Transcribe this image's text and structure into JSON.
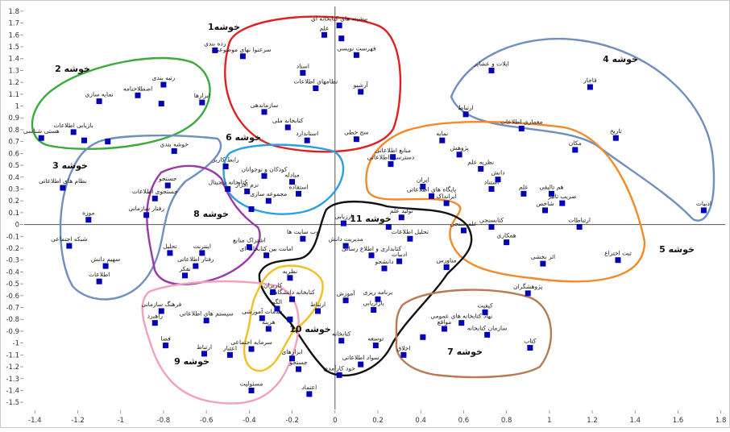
{
  "chart_data": {
    "type": "scatter",
    "xlim": [
      -1.45,
      1.82
    ],
    "ylim": [
      -1.56,
      1.84
    ],
    "x_ticks": [
      -1.4,
      -1.2,
      -1,
      -0.8,
      -0.6,
      -0.4,
      -0.2,
      0,
      0.2,
      0.4,
      0.6,
      0.8,
      1,
      1.2,
      1.4,
      1.6,
      1.8
    ],
    "y_ticks": [
      -1.5,
      -1.4,
      -1.3,
      -1.2,
      -1.1,
      -1,
      -0.9,
      -0.8,
      -0.7,
      -0.6,
      -0.5,
      -0.4,
      -0.3,
      -0.2,
      -0.1,
      0,
      0.1,
      0.2,
      0.3,
      0.4,
      0.5,
      0.6,
      0.7,
      0.8,
      0.9,
      1,
      1.1,
      1.2,
      1.3,
      1.4,
      1.5,
      1.6,
      1.7,
      1.8
    ],
    "grid": false,
    "points": [
      {
        "x": 0.02,
        "y": 1.68,
        "label": "پیشینه های کتابخانه ای"
      },
      {
        "x": -0.05,
        "y": 1.6,
        "label": "علم"
      },
      {
        "x": 0.03,
        "y": 1.57,
        "label": ""
      },
      {
        "x": 0.1,
        "y": 1.43,
        "label": "فهرست نویسی"
      },
      {
        "x": -0.56,
        "y": 1.47,
        "label": "رده بندی"
      },
      {
        "x": -0.43,
        "y": 1.42,
        "label": "سرعنوا نهای موضوعی"
      },
      {
        "x": -0.15,
        "y": 1.28,
        "label": "اسناد"
      },
      {
        "x": -0.09,
        "y": 1.15,
        "label": "نظامهای اطلاعات"
      },
      {
        "x": 0.12,
        "y": 1.12,
        "label": "آرشیو"
      },
      {
        "x": -0.62,
        "y": 1.03,
        "label": "ابزارها"
      },
      {
        "x": -0.33,
        "y": 0.95,
        "label": "سازماندهی"
      },
      {
        "x": -0.22,
        "y": 0.82,
        "label": "کتابخانه ملی"
      },
      {
        "x": -0.13,
        "y": 0.71,
        "label": "استاندارد"
      },
      {
        "x": 0.1,
        "y": 0.72,
        "label": "سح خطی"
      },
      {
        "x": -0.8,
        "y": 1.18,
        "label": "رتبه بندی"
      },
      {
        "x": -1.1,
        "y": 1.04,
        "label": "نمایه سازی"
      },
      {
        "x": -0.92,
        "y": 1.09,
        "label": "اصطلاحنامه"
      },
      {
        "x": -0.81,
        "y": 1.02,
        "label": ""
      },
      {
        "x": -1.37,
        "y": 0.73,
        "label": "هستی شناسی"
      },
      {
        "x": -1.22,
        "y": 0.78,
        "label": "بازیابی اطلاعات"
      },
      {
        "x": -1.17,
        "y": 0.71,
        "label": ""
      },
      {
        "x": -1.06,
        "y": 0.7,
        "label": ""
      },
      {
        "x": -0.75,
        "y": 0.62,
        "label": "خوشه بندی"
      },
      {
        "x": -1.27,
        "y": 0.31,
        "label": "نظام های اطلاعاتی"
      },
      {
        "x": -0.78,
        "y": 0.33,
        "label": "جستجو"
      },
      {
        "x": -0.84,
        "y": 0.22,
        "label": "جستجوی اطلاعات"
      },
      {
        "x": -0.88,
        "y": 0.08,
        "label": "رفتار سازمانی"
      },
      {
        "x": -1.15,
        "y": 0.04,
        "label": "موزه"
      },
      {
        "x": -1.24,
        "y": -0.18,
        "label": "شبکه اجتماعی"
      },
      {
        "x": -1.07,
        "y": -0.35,
        "label": "سهیم دانش"
      },
      {
        "x": -1.1,
        "y": -0.48,
        "label": "اطلاعات"
      },
      {
        "x": -0.77,
        "y": -0.24,
        "label": "تحلیل"
      },
      {
        "x": -0.62,
        "y": -0.24,
        "label": "اینترنت"
      },
      {
        "x": -0.65,
        "y": -0.35,
        "label": "رفتار اطلاعاتی"
      },
      {
        "x": -0.7,
        "y": -0.43,
        "label": "تفکر"
      },
      {
        "x": -0.4,
        "y": -0.19,
        "label": "اشتراک منابع"
      },
      {
        "x": -0.32,
        "y": -0.26,
        "label": "امانت بین کتابخانه ای"
      },
      {
        "x": -0.51,
        "y": 0.49,
        "label": "رابط کاربر"
      },
      {
        "x": -0.33,
        "y": 0.41,
        "label": "کودکان و نوجوانان"
      },
      {
        "x": -0.5,
        "y": 0.3,
        "label": "کتابخانه دیجیتال"
      },
      {
        "x": -0.41,
        "y": 0.28,
        "label": "نرم افزار"
      },
      {
        "x": -0.2,
        "y": 0.36,
        "label": "مبادله"
      },
      {
        "x": -0.31,
        "y": 0.2,
        "label": "مجموعه سازی"
      },
      {
        "x": -0.17,
        "y": 0.26,
        "label": "استفاده"
      },
      {
        "x": -0.39,
        "y": 0.13,
        "label": ""
      },
      {
        "x": 0.04,
        "y": 0.01,
        "label": "ارزیابی"
      },
      {
        "x": -0.15,
        "y": -0.12,
        "label": "وب سایت ها"
      },
      {
        "x": 0.17,
        "y": -0.26,
        "label": "کتابداری و اطلاع رسانی"
      },
      {
        "x": 0.05,
        "y": -0.18,
        "label": "مدیریت دانش"
      },
      {
        "x": 0.23,
        "y": -0.37,
        "label": "دانشجو"
      },
      {
        "x": 0.3,
        "y": -0.31,
        "label": "ادبیات"
      },
      {
        "x": -0.21,
        "y": -0.45,
        "label": "نظریه"
      },
      {
        "x": -0.29,
        "y": -0.57,
        "label": "کاربران"
      },
      {
        "x": -0.2,
        "y": -0.63,
        "label": "کتابخانه دانشگاهی"
      },
      {
        "x": -0.27,
        "y": -0.71,
        "label": "الگو"
      },
      {
        "x": -0.34,
        "y": -0.79,
        "label": "خدمات آموزشی"
      },
      {
        "x": -0.21,
        "y": -0.8,
        "label": ""
      },
      {
        "x": 0.05,
        "y": -0.64,
        "label": "آموزش"
      },
      {
        "x": -0.08,
        "y": -0.73,
        "label": "ارتباط"
      },
      {
        "x": 0.2,
        "y": -0.63,
        "label": "برنامه ریزی"
      },
      {
        "x": 0.18,
        "y": -0.72,
        "label": "بازاریابی"
      },
      {
        "x": -0.31,
        "y": -0.88,
        "label": "هزینه"
      },
      {
        "x": -0.39,
        "y": -1.05,
        "label": "سرمایه اجتماعی"
      },
      {
        "x": -0.49,
        "y": -1.1,
        "label": "اعتبار"
      },
      {
        "x": -0.6,
        "y": -0.81,
        "label": "سیستم های اطلاعاتی"
      },
      {
        "x": -0.2,
        "y": -1.13,
        "label": "ابزارهای"
      },
      {
        "x": -0.17,
        "y": -1.22,
        "label": "جستجو"
      },
      {
        "x": 0.03,
        "y": -0.98,
        "label": "کتابخانه"
      },
      {
        "x": 0.19,
        "y": -1.02,
        "label": "توسعه"
      },
      {
        "x": 0.12,
        "y": -1.18,
        "label": "سواد اطلاعاتی"
      },
      {
        "x": 0.02,
        "y": -1.27,
        "label": "خود کارآمدی"
      },
      {
        "x": 0.32,
        "y": -1.1,
        "label": "اخلاق"
      },
      {
        "x": 0.41,
        "y": -0.95,
        "label": ""
      },
      {
        "x": -0.81,
        "y": -0.73,
        "label": "فرهنگ سازمانی"
      },
      {
        "x": -0.84,
        "y": -0.83,
        "label": "راهبرد"
      },
      {
        "x": -0.79,
        "y": -1.02,
        "label": "فضا"
      },
      {
        "x": -0.61,
        "y": -1.09,
        "label": "ارتباط"
      },
      {
        "x": -0.39,
        "y": -1.4,
        "label": "مسئولیت"
      },
      {
        "x": -0.12,
        "y": -1.43,
        "label": "اعتماد"
      },
      {
        "x": 0.73,
        "y": 1.3,
        "label": "ایلات و عشایر"
      },
      {
        "x": 1.19,
        "y": 1.16,
        "label": "قاجار"
      },
      {
        "x": 0.61,
        "y": 0.93,
        "label": "ارتباط"
      },
      {
        "x": 0.87,
        "y": 0.81,
        "label": "معماری اطلاعات"
      },
      {
        "x": 1.12,
        "y": 0.63,
        "label": "مکان"
      },
      {
        "x": 1.31,
        "y": 0.73,
        "label": "تاریخ"
      },
      {
        "x": 0.5,
        "y": 0.71,
        "label": "نمایه"
      },
      {
        "x": 0.58,
        "y": 0.59,
        "label": "پژوهش"
      },
      {
        "x": 0.27,
        "y": 0.57,
        "label": "منابع اطلاعاتی"
      },
      {
        "x": 0.26,
        "y": 0.51,
        "label": "دسترسی اطلاعاتی"
      },
      {
        "x": 0.68,
        "y": 0.47,
        "label": "نظریه علم"
      },
      {
        "x": 0.76,
        "y": 0.38,
        "label": "دانش"
      },
      {
        "x": 0.41,
        "y": 0.32,
        "label": "ایران"
      },
      {
        "x": 0.45,
        "y": 0.24,
        "label": "پایگاه های اطلاعاتی"
      },
      {
        "x": 0.52,
        "y": 0.18,
        "label": "ایرانداک"
      },
      {
        "x": 0.73,
        "y": 0.3,
        "label": "استناد"
      },
      {
        "x": 0.88,
        "y": 0.26,
        "label": "علم"
      },
      {
        "x": 1.01,
        "y": 0.26,
        "label": "هم تالیفی"
      },
      {
        "x": 1.06,
        "y": 0.18,
        "label": "ضریب تاثیر"
      },
      {
        "x": 0.98,
        "y": 0.12,
        "label": "شاخص"
      },
      {
        "x": 0.31,
        "y": 0.06,
        "label": "تولید علم"
      },
      {
        "x": 0.25,
        "y": -0.02,
        "label": ""
      },
      {
        "x": 0.35,
        "y": -0.12,
        "label": "تحلیل اطلاعات"
      },
      {
        "x": 0.6,
        "y": -0.05,
        "label": "علم سنجی"
      },
      {
        "x": 0.73,
        "y": -0.02,
        "label": "کتابسنجی"
      },
      {
        "x": 0.8,
        "y": -0.15,
        "label": "همکاری"
      },
      {
        "x": 1.14,
        "y": -0.02,
        "label": "ارتباطات"
      },
      {
        "x": 0.52,
        "y": -0.36,
        "label": "متاورس"
      },
      {
        "x": 0.97,
        "y": -0.33,
        "label": "اثر بخشی"
      },
      {
        "x": 1.32,
        "y": -0.3,
        "label": "ثبت اختراع"
      },
      {
        "x": 0.9,
        "y": -0.58,
        "label": "پژوهشگران"
      },
      {
        "x": 1.72,
        "y": 0.12,
        "label": "ادبیات"
      },
      {
        "x": 0.7,
        "y": -0.74,
        "label": "کیفیت"
      },
      {
        "x": 0.59,
        "y": -0.83,
        "label": "نهاد کتابخانه های عمومی"
      },
      {
        "x": 0.51,
        "y": -0.88,
        "label": "مواقع"
      },
      {
        "x": 0.71,
        "y": -0.93,
        "label": "سازمان کتابخانه"
      },
      {
        "x": 0.91,
        "y": -1.04,
        "label": "کتاب"
      }
    ],
    "clusters": [
      {
        "label": "خوشه1"
      },
      {
        "label": "خوشه 2"
      },
      {
        "label": "خوشه 3"
      },
      {
        "label": "خوشه 4"
      },
      {
        "label": "خوشه 5"
      },
      {
        "label": "خوشه 6"
      },
      {
        "label": "خوشه 7"
      },
      {
        "label": "خوشه 8"
      },
      {
        "label": "خوشه 9"
      },
      {
        "label": "خوشه 10"
      },
      {
        "label": "خوشه 11"
      }
    ],
    "colors": {
      "point": "#0000b8",
      "axis": "#555555",
      "red": "#e02020",
      "green": "#3aaa3a",
      "steelblue": "#6f8fc0",
      "skyblue": "#2ba0e0",
      "orange": "#f28a2a",
      "purple": "#9a3aa8",
      "pink": "#f2a0be",
      "gold": "#f2c020",
      "black": "#111111",
      "brown": "#b87a55"
    }
  }
}
